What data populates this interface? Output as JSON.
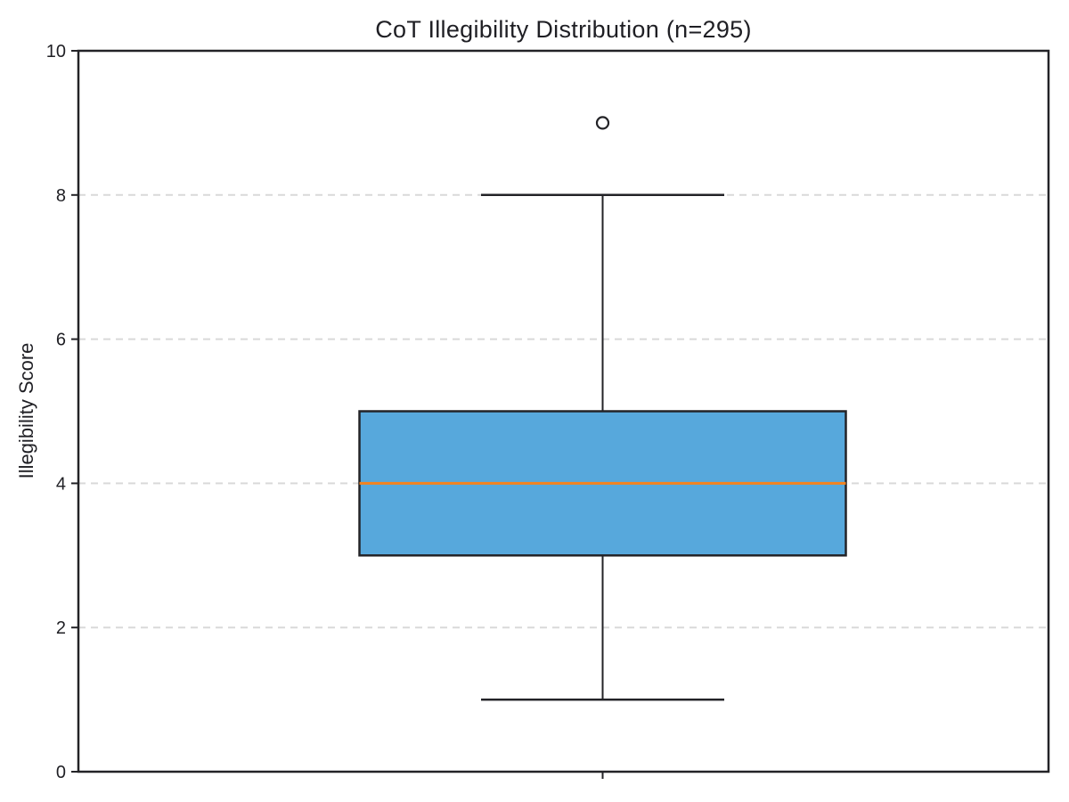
{
  "title": "CoT Illegibility Distribution (n=295)",
  "ylabel": "Illegibility Score",
  "colors": {
    "box_fill": "#57a8dc",
    "median": "#f5831e",
    "line": "#232327",
    "grid": "#d9d9d9",
    "text": "#1f1f24",
    "background": "#ffffff"
  },
  "chart_data": {
    "type": "boxplot",
    "title": "CoT Illegibility Distribution (n=295)",
    "xlabel": "",
    "ylabel": "Illegibility Score",
    "ylim": [
      0,
      10
    ],
    "y_ticks": [
      0,
      2,
      4,
      6,
      8,
      10
    ],
    "grid_y": [
      2,
      4,
      6,
      8
    ],
    "grid_style": "dashed",
    "legend": "none",
    "n": 295,
    "series": [
      {
        "name": "CoT Illegibility",
        "whisker_low": 1,
        "q1": 3,
        "median": 4,
        "q3": 5,
        "whisker_high": 8,
        "outliers": [
          9
        ]
      }
    ]
  }
}
